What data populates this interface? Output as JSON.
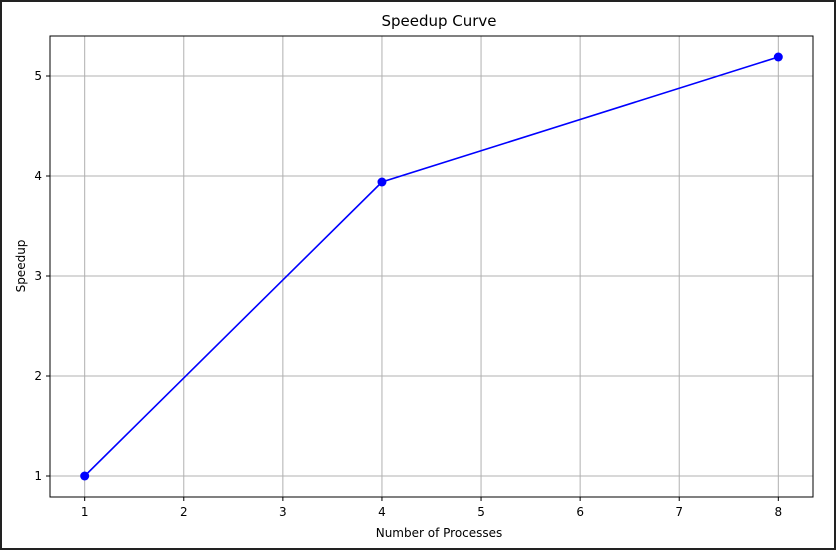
{
  "chart_data": {
    "type": "line",
    "title": "Speedup Curve",
    "xlabel": "Number of Processes",
    "ylabel": "Speedup",
    "x": [
      1,
      4,
      8
    ],
    "series": [
      {
        "values": [
          1.0,
          3.94,
          5.19
        ],
        "color": "#0000ff",
        "marker": "circle"
      }
    ],
    "xlim": [
      0.65,
      8.35
    ],
    "ylim": [
      0.79,
      5.4
    ],
    "xticks": [
      1,
      2,
      3,
      4,
      5,
      6,
      7,
      8
    ],
    "yticks": [
      1,
      2,
      3,
      4,
      5
    ],
    "grid": true,
    "grid_color": "#b0b0b0"
  }
}
